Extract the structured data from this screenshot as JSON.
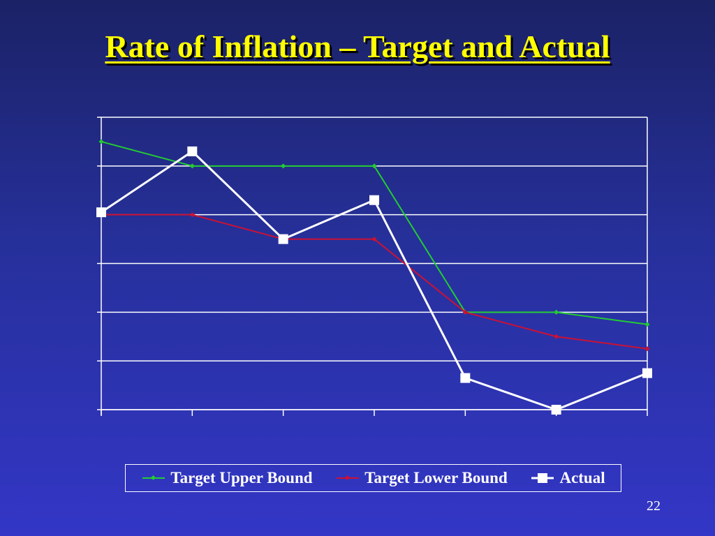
{
  "slide": {
    "title": "Rate of Inflation – Target and Actual",
    "page_number": "22"
  },
  "colors": {
    "title": "#ffff00",
    "upper": "#22cc33",
    "lower": "#cc1133",
    "actual": "#ffffff",
    "grid": "#ffffff"
  },
  "chart_data": {
    "type": "line",
    "title": "Rate of Inflation – Target and Actual",
    "xlabel": "",
    "ylabel": "",
    "categories": [
      "",
      "",
      "",
      "",
      "",
      "",
      ""
    ],
    "ylim": [
      0,
      6
    ],
    "grid": true,
    "legend_position": "bottom",
    "series": [
      {
        "name": "Target Upper Bound",
        "values": [
          5.5,
          5.0,
          5.0,
          5.0,
          2.0,
          2.0,
          1.75
        ],
        "color": "#22cc33",
        "marker": "diamond"
      },
      {
        "name": "Target Lower Bound",
        "values": [
          4.0,
          4.0,
          3.5,
          3.5,
          2.0,
          1.5,
          1.25
        ],
        "color": "#cc1133",
        "marker": "diamond"
      },
      {
        "name": "Actual",
        "values": [
          4.05,
          5.3,
          3.5,
          4.3,
          0.65,
          0.0,
          0.75
        ],
        "color": "#ffffff",
        "marker": "square"
      }
    ]
  }
}
